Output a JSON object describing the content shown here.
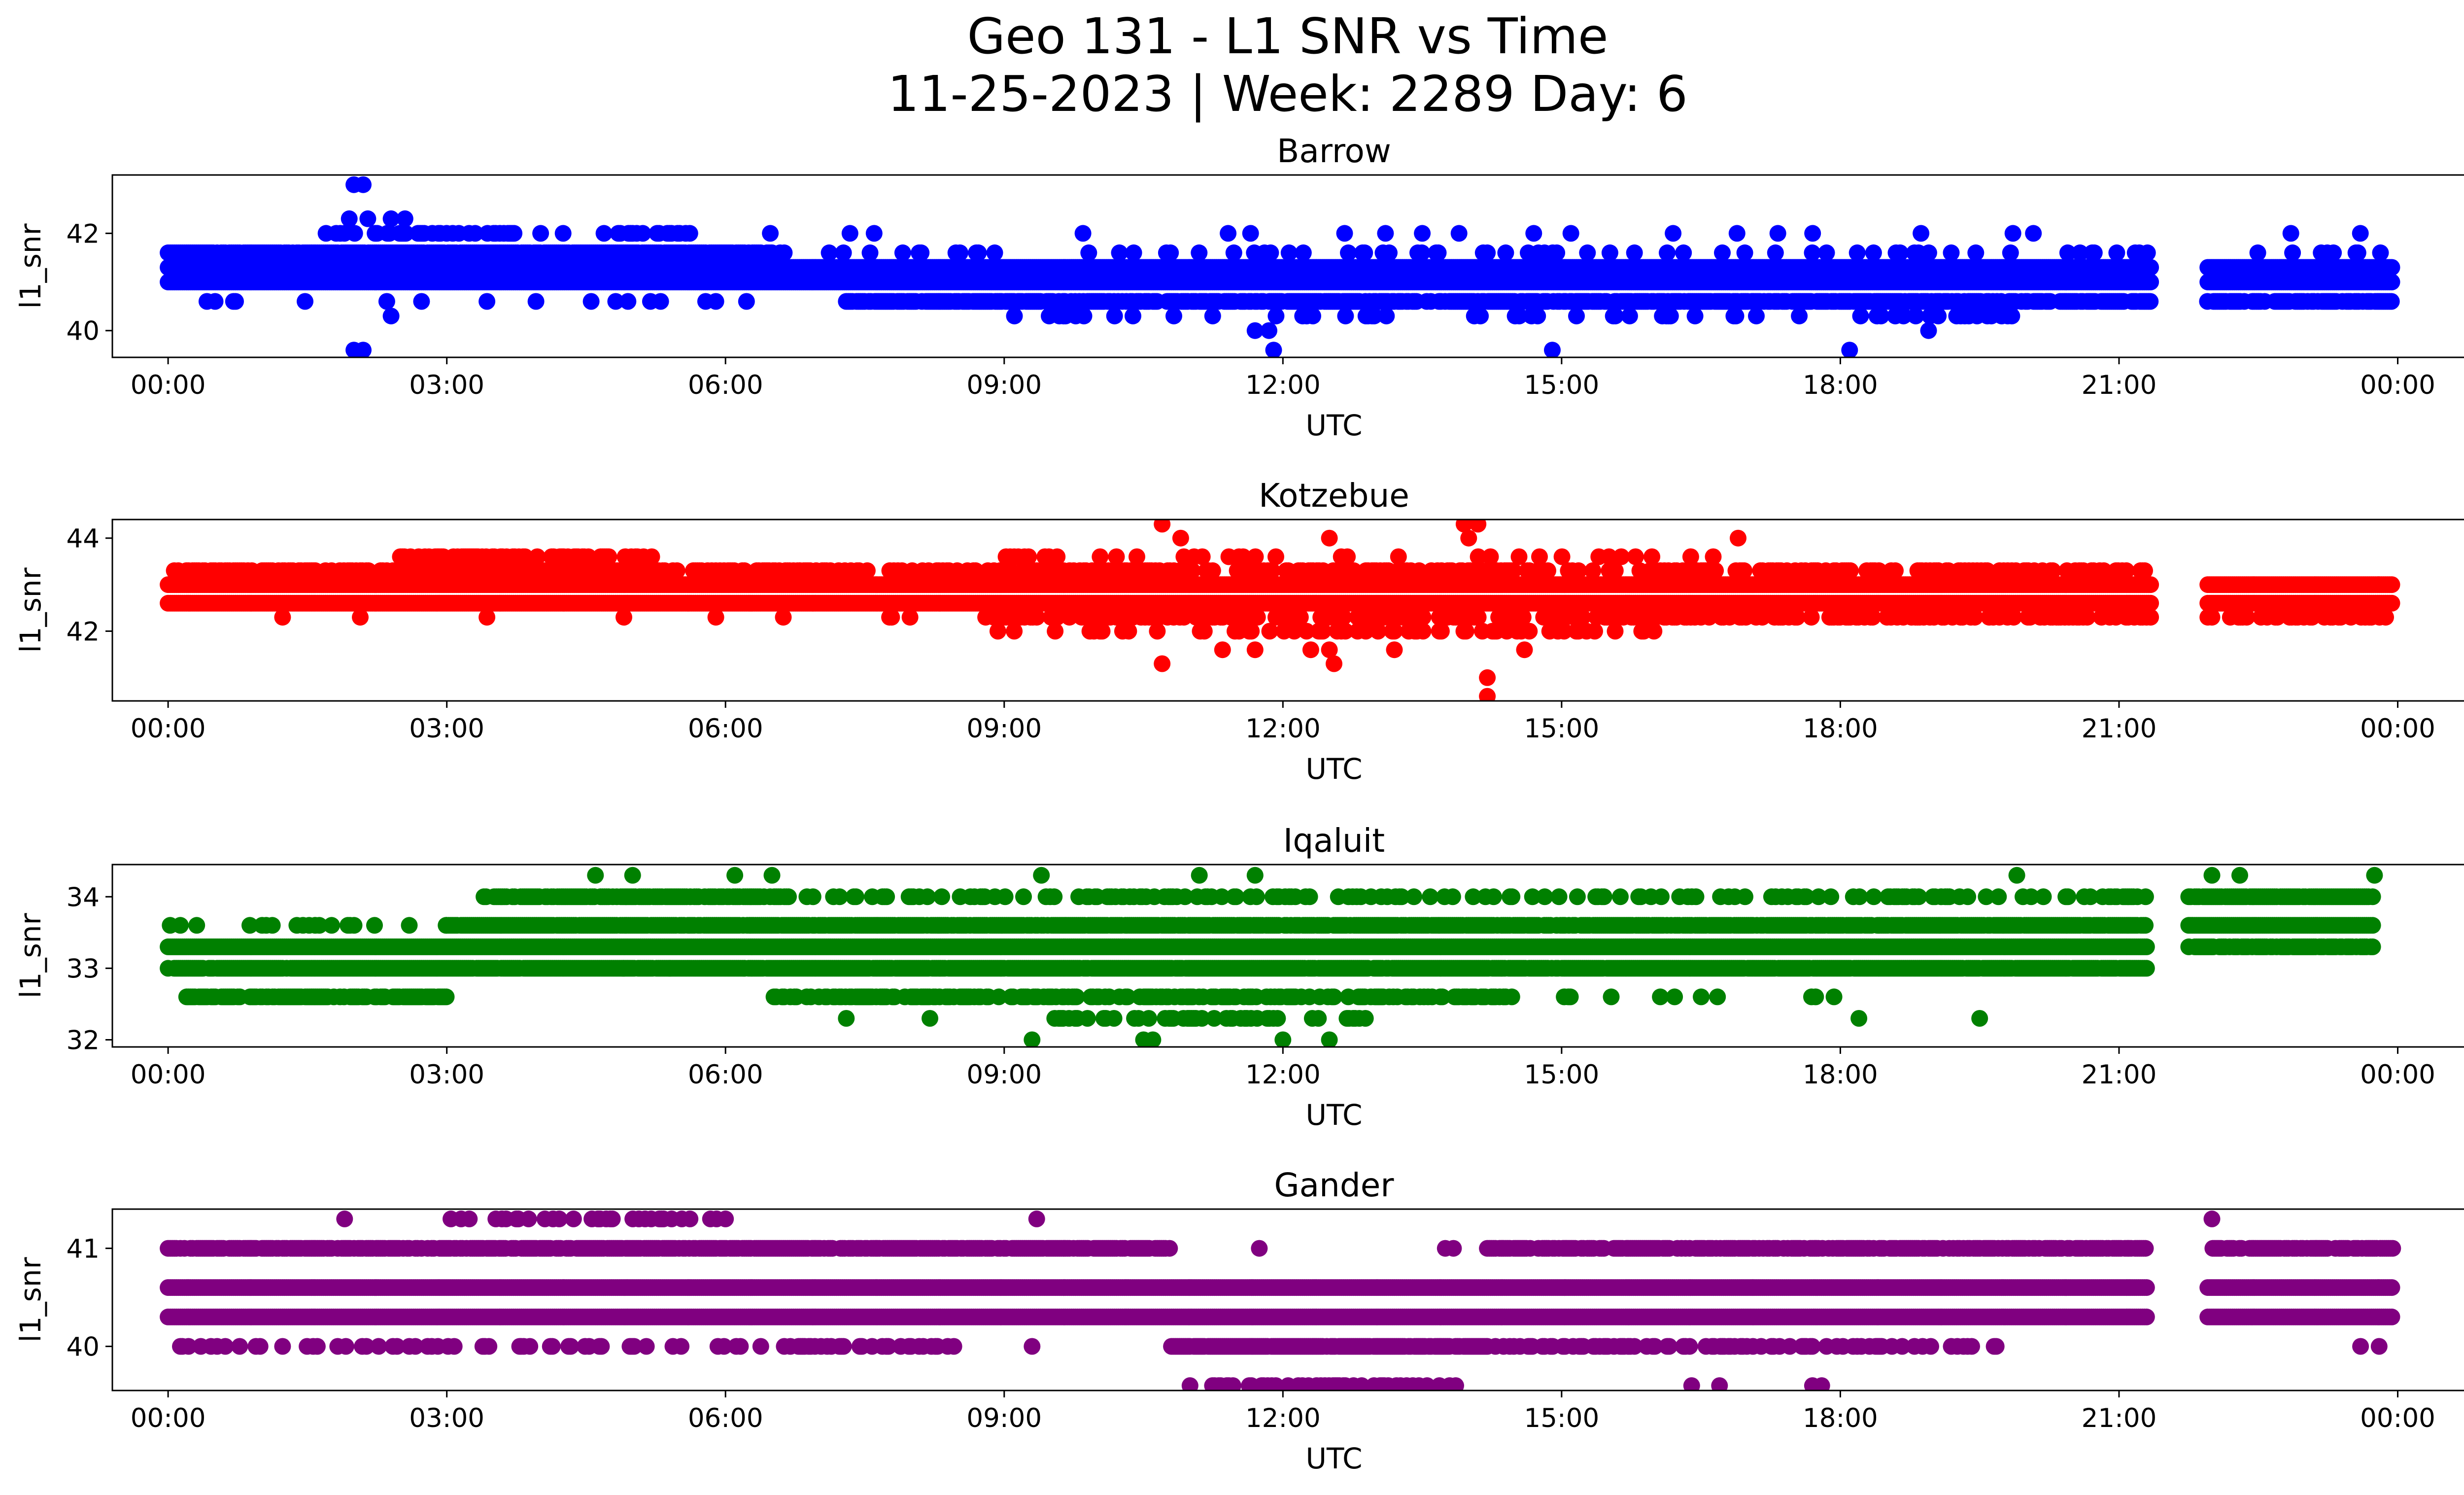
{
  "figure": {
    "title_line1": "Geo 131 - L1 SNR vs Time",
    "title_line2": "11-25-2023 | Week: 2289 Day: 6"
  },
  "chart_data": [
    {
      "type": "scatter",
      "title": "Barrow",
      "xlabel": "UTC",
      "ylabel": "l1_snr",
      "color": "#0000ff",
      "x_unit": "hours UTC",
      "xlim": [
        -0.6,
        25.7
      ],
      "ylim": [
        39.45,
        43.2
      ],
      "x_ticks": [
        0,
        3,
        6,
        9,
        12,
        15,
        18,
        21,
        24
      ],
      "x_tick_labels": [
        "00:00",
        "03:00",
        "06:00",
        "09:00",
        "12:00",
        "15:00",
        "18:00",
        "21:00",
        "00:00"
      ],
      "y_ticks": [
        40,
        42
      ],
      "y_tick_labels": [
        "40",
        "42"
      ],
      "gaps": [
        [
          21.35,
          21.95
        ]
      ],
      "series_end": 23.95,
      "bands": [
        {
          "y": 41.0,
          "from": 0.0,
          "to": 23.95,
          "density": 1.0
        },
        {
          "y": 41.3,
          "from": 0.0,
          "to": 23.95,
          "density": 1.0
        },
        {
          "y": 41.6,
          "from": 0.0,
          "to": 6.5,
          "density": 0.9
        },
        {
          "y": 41.6,
          "from": 6.5,
          "to": 23.95,
          "density": 0.1
        },
        {
          "y": 40.6,
          "from": 7.3,
          "to": 23.95,
          "density": 0.75
        },
        {
          "y": 40.6,
          "from": 0.0,
          "to": 7.3,
          "density": 0.05
        },
        {
          "y": 42.0,
          "from": 1.7,
          "to": 5.8,
          "density": 0.3
        },
        {
          "y": 42.0,
          "from": 5.8,
          "to": 23.95,
          "density": 0.01
        },
        {
          "y": 40.3,
          "from": 9.0,
          "to": 20.5,
          "density": 0.12
        }
      ],
      "outliers": [
        {
          "x": 2.0,
          "y": 43.0
        },
        {
          "x": 2.1,
          "y": 43.0
        },
        {
          "x": 1.95,
          "y": 42.3
        },
        {
          "x": 2.15,
          "y": 42.3
        },
        {
          "x": 2.4,
          "y": 42.3
        },
        {
          "x": 2.55,
          "y": 42.3
        },
        {
          "x": 2.0,
          "y": 39.6
        },
        {
          "x": 2.1,
          "y": 39.6
        },
        {
          "x": 2.4,
          "y": 40.3
        },
        {
          "x": 11.7,
          "y": 40.0
        },
        {
          "x": 11.85,
          "y": 40.0
        },
        {
          "x": 11.9,
          "y": 39.6
        },
        {
          "x": 14.9,
          "y": 39.6
        },
        {
          "x": 18.1,
          "y": 39.6
        },
        {
          "x": 18.95,
          "y": 40.0
        },
        {
          "x": 13.5,
          "y": 42.0
        },
        {
          "x": 14.7,
          "y": 42.0
        },
        {
          "x": 15.1,
          "y": 42.0
        },
        {
          "x": 16.2,
          "y": 42.0
        },
        {
          "x": 7.6,
          "y": 42.0
        }
      ]
    },
    {
      "type": "scatter",
      "title": "Kotzebue",
      "xlabel": "UTC",
      "ylabel": "l1_snr",
      "color": "#ff0000",
      "x_unit": "hours UTC",
      "xlim": [
        -0.6,
        25.7
      ],
      "ylim": [
        40.5,
        44.4
      ],
      "x_ticks": [
        0,
        3,
        6,
        9,
        12,
        15,
        18,
        21,
        24
      ],
      "x_tick_labels": [
        "00:00",
        "03:00",
        "06:00",
        "09:00",
        "12:00",
        "15:00",
        "18:00",
        "21:00",
        "00:00"
      ],
      "y_ticks": [
        42,
        44
      ],
      "y_tick_labels": [
        "42",
        "44"
      ],
      "gaps": [
        [
          21.35,
          21.95
        ]
      ],
      "series_end": 23.95,
      "bands": [
        {
          "y": 42.6,
          "from": 0.0,
          "to": 23.95,
          "density": 1.0
        },
        {
          "y": 43.0,
          "from": 0.0,
          "to": 23.95,
          "density": 1.0
        },
        {
          "y": 43.3,
          "from": 0.0,
          "to": 6.8,
          "density": 0.6
        },
        {
          "y": 43.3,
          "from": 6.8,
          "to": 21.3,
          "density": 0.35
        },
        {
          "y": 43.6,
          "from": 2.5,
          "to": 5.3,
          "density": 0.5
        },
        {
          "y": 43.6,
          "from": 8.8,
          "to": 16.9,
          "density": 0.1
        },
        {
          "y": 42.3,
          "from": 8.8,
          "to": 23.95,
          "density": 0.4
        },
        {
          "y": 42.3,
          "from": 0.0,
          "to": 8.8,
          "density": 0.03
        },
        {
          "y": 42.0,
          "from": 8.8,
          "to": 16.0,
          "density": 0.2
        }
      ],
      "outliers": [
        {
          "x": 10.7,
          "y": 44.3
        },
        {
          "x": 13.95,
          "y": 44.3
        },
        {
          "x": 14.1,
          "y": 44.3
        },
        {
          "x": 10.9,
          "y": 44.0
        },
        {
          "x": 12.5,
          "y": 44.0
        },
        {
          "x": 14.0,
          "y": 44.0
        },
        {
          "x": 16.9,
          "y": 44.0
        },
        {
          "x": 10.7,
          "y": 41.3
        },
        {
          "x": 11.35,
          "y": 41.6
        },
        {
          "x": 11.7,
          "y": 41.6
        },
        {
          "x": 12.3,
          "y": 41.6
        },
        {
          "x": 12.5,
          "y": 41.6
        },
        {
          "x": 12.55,
          "y": 41.3
        },
        {
          "x": 13.2,
          "y": 41.6
        },
        {
          "x": 14.6,
          "y": 41.6
        },
        {
          "x": 14.2,
          "y": 41.0
        },
        {
          "x": 14.2,
          "y": 40.6
        }
      ]
    },
    {
      "type": "scatter",
      "title": "Iqaluit",
      "xlabel": "UTC",
      "ylabel": "l1_snr",
      "color": "#008000",
      "x_unit": "hours UTC",
      "xlim": [
        -0.6,
        25.7
      ],
      "ylim": [
        31.9,
        34.45
      ],
      "x_ticks": [
        0,
        3,
        6,
        9,
        12,
        15,
        18,
        21,
        24
      ],
      "x_tick_labels": [
        "00:00",
        "03:00",
        "06:00",
        "09:00",
        "12:00",
        "15:00",
        "18:00",
        "21:00",
        "00:00"
      ],
      "y_ticks": [
        32,
        33,
        34
      ],
      "y_tick_labels": [
        "32",
        "33",
        "34"
      ],
      "gaps": [
        [
          21.3,
          21.75
        ]
      ],
      "series_end": 23.75,
      "bands": [
        {
          "y": 33.0,
          "from": 0.0,
          "to": 21.3,
          "density": 0.95
        },
        {
          "y": 33.3,
          "from": 0.0,
          "to": 21.3,
          "density": 1.0
        },
        {
          "y": 33.3,
          "from": 21.75,
          "to": 23.75,
          "density": 0.7
        },
        {
          "y": 33.6,
          "from": 3.0,
          "to": 21.3,
          "density": 0.9
        },
        {
          "y": 33.6,
          "from": 0.0,
          "to": 3.0,
          "density": 0.1
        },
        {
          "y": 33.6,
          "from": 21.75,
          "to": 23.75,
          "density": 1.0
        },
        {
          "y": 32.6,
          "from": 0.2,
          "to": 3.0,
          "density": 0.8
        },
        {
          "y": 32.6,
          "from": 6.5,
          "to": 14.5,
          "density": 0.55
        },
        {
          "y": 32.6,
          "from": 14.5,
          "to": 19.6,
          "density": 0.05
        },
        {
          "y": 34.0,
          "from": 3.4,
          "to": 6.7,
          "density": 0.8
        },
        {
          "y": 34.0,
          "from": 6.7,
          "to": 21.3,
          "density": 0.25
        },
        {
          "y": 34.0,
          "from": 21.75,
          "to": 23.75,
          "density": 0.9
        },
        {
          "y": 32.3,
          "from": 9.5,
          "to": 12.9,
          "density": 0.35
        }
      ],
      "outliers": [
        {
          "x": 4.6,
          "y": 34.3
        },
        {
          "x": 5.0,
          "y": 34.3
        },
        {
          "x": 6.1,
          "y": 34.3
        },
        {
          "x": 6.5,
          "y": 34.3
        },
        {
          "x": 9.4,
          "y": 34.3
        },
        {
          "x": 11.1,
          "y": 34.3
        },
        {
          "x": 11.7,
          "y": 34.3
        },
        {
          "x": 19.9,
          "y": 34.3
        },
        {
          "x": 22.0,
          "y": 34.3
        },
        {
          "x": 22.3,
          "y": 34.3
        },
        {
          "x": 23.75,
          "y": 34.3
        },
        {
          "x": 10.5,
          "y": 32.0
        },
        {
          "x": 10.6,
          "y": 32.0
        },
        {
          "x": 12.0,
          "y": 32.0
        },
        {
          "x": 12.5,
          "y": 32.0
        },
        {
          "x": 7.3,
          "y": 32.3
        },
        {
          "x": 8.2,
          "y": 32.3
        },
        {
          "x": 18.2,
          "y": 32.3
        },
        {
          "x": 19.5,
          "y": 32.3
        },
        {
          "x": 4.9,
          "y": 33.0
        },
        {
          "x": 5.4,
          "y": 33.0
        },
        {
          "x": 6.2,
          "y": 33.0
        },
        {
          "x": 9.3,
          "y": 32.0
        }
      ]
    },
    {
      "type": "scatter",
      "title": "Gander",
      "xlabel": "UTC",
      "ylabel": "l1_snr",
      "color": "#800080",
      "x_unit": "hours UTC",
      "xlim": [
        -0.6,
        25.7
      ],
      "ylim": [
        39.55,
        41.4
      ],
      "x_ticks": [
        0,
        3,
        6,
        9,
        12,
        15,
        18,
        21,
        24
      ],
      "x_tick_labels": [
        "00:00",
        "03:00",
        "06:00",
        "09:00",
        "12:00",
        "15:00",
        "18:00",
        "21:00",
        "00:00"
      ],
      "y_ticks": [
        40,
        41
      ],
      "y_tick_labels": [
        "40",
        "41"
      ],
      "gaps": [
        [
          21.3,
          21.95
        ]
      ],
      "series_end": 23.95,
      "bands": [
        {
          "y": 40.3,
          "from": 0.0,
          "to": 23.95,
          "density": 1.0
        },
        {
          "y": 40.6,
          "from": 0.0,
          "to": 23.95,
          "density": 1.0
        },
        {
          "y": 41.0,
          "from": 0.0,
          "to": 10.8,
          "density": 0.8
        },
        {
          "y": 41.0,
          "from": 10.8,
          "to": 14.2,
          "density": 0.02
        },
        {
          "y": 41.0,
          "from": 14.2,
          "to": 23.95,
          "density": 0.75
        },
        {
          "y": 40.0,
          "from": 0.0,
          "to": 6.5,
          "density": 0.15
        },
        {
          "y": 40.0,
          "from": 6.5,
          "to": 8.5,
          "density": 0.3
        },
        {
          "y": 40.0,
          "from": 10.8,
          "to": 14.2,
          "density": 0.9
        },
        {
          "y": 40.0,
          "from": 14.2,
          "to": 19.7,
          "density": 0.35
        },
        {
          "y": 39.6,
          "from": 11.0,
          "to": 14.0,
          "density": 0.3
        },
        {
          "y": 41.3,
          "from": 3.0,
          "to": 6.0,
          "density": 0.25
        }
      ],
      "outliers": [
        {
          "x": 1.9,
          "y": 41.3
        },
        {
          "x": 9.35,
          "y": 41.3
        },
        {
          "x": 22.0,
          "y": 41.3
        },
        {
          "x": 6.0,
          "y": 41.3
        },
        {
          "x": 16.4,
          "y": 39.6
        },
        {
          "x": 16.7,
          "y": 39.6
        },
        {
          "x": 17.7,
          "y": 39.6
        },
        {
          "x": 17.8,
          "y": 39.6
        },
        {
          "x": 23.6,
          "y": 40.0
        },
        {
          "x": 23.8,
          "y": 40.0
        },
        {
          "x": 9.3,
          "y": 40.0
        },
        {
          "x": 3.8,
          "y": 40.0
        }
      ]
    }
  ]
}
